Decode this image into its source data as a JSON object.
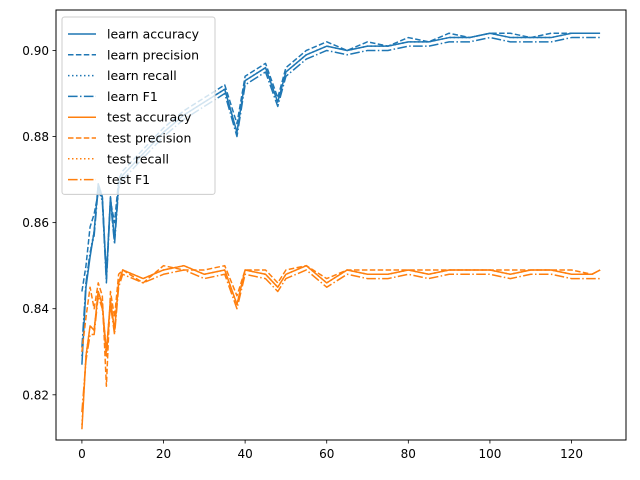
{
  "chart_data": {
    "type": "line",
    "title": "",
    "xlabel": "",
    "ylabel": "",
    "xlim": [
      -6.35,
      133.35
    ],
    "ylim": [
      0.8095,
      0.9094
    ],
    "xticks": [
      0,
      20,
      40,
      60,
      80,
      100,
      120
    ],
    "xtick_labels": [
      "0",
      "20",
      "40",
      "60",
      "80",
      "100",
      "120"
    ],
    "yticks": [
      0.82,
      0.84,
      0.86,
      0.88,
      0.9
    ],
    "ytick_labels": [
      "0.82",
      "0.84",
      "0.86",
      "0.88",
      "0.90"
    ],
    "grid": false,
    "legend_position": "top-left",
    "x_points": [
      0,
      1,
      2,
      3,
      4,
      5,
      6,
      7,
      8,
      9,
      10,
      15,
      20,
      25,
      30,
      35,
      38,
      40,
      45,
      48,
      50,
      55,
      60,
      65,
      70,
      75,
      80,
      85,
      90,
      95,
      100,
      105,
      110,
      115,
      120,
      125,
      127
    ],
    "series": [
      {
        "name": "learn accuracy",
        "color": "#1f77b4",
        "dash": "solid",
        "values": [
          0.827,
          0.845,
          0.852,
          0.858,
          0.869,
          0.866,
          0.847,
          0.866,
          0.856,
          0.869,
          0.871,
          0.876,
          0.881,
          0.885,
          0.888,
          0.891,
          0.881,
          0.893,
          0.896,
          0.888,
          0.895,
          0.899,
          0.901,
          0.9,
          0.901,
          0.901,
          0.902,
          0.902,
          0.903,
          0.903,
          0.904,
          0.903,
          0.903,
          0.903,
          0.904,
          0.904,
          0.904
        ]
      },
      {
        "name": "learn precision",
        "color": "#1f77b4",
        "dash": "dashed",
        "values": [
          0.844,
          0.85,
          0.859,
          0.862,
          0.867,
          0.866,
          0.848,
          0.865,
          0.86,
          0.87,
          0.872,
          0.877,
          0.882,
          0.886,
          0.889,
          0.892,
          0.883,
          0.894,
          0.897,
          0.889,
          0.896,
          0.9,
          0.902,
          0.9,
          0.902,
          0.901,
          0.903,
          0.902,
          0.904,
          0.903,
          0.904,
          0.904,
          0.903,
          0.904,
          0.904,
          0.904,
          0.904
        ]
      },
      {
        "name": "learn recall",
        "color": "#1f77b4",
        "dash": "dotted",
        "values": [
          0.829,
          0.846,
          0.853,
          0.858,
          0.869,
          0.866,
          0.847,
          0.866,
          0.856,
          0.869,
          0.871,
          0.876,
          0.881,
          0.885,
          0.888,
          0.891,
          0.881,
          0.893,
          0.896,
          0.888,
          0.895,
          0.899,
          0.901,
          0.9,
          0.901,
          0.901,
          0.902,
          0.902,
          0.903,
          0.903,
          0.904,
          0.903,
          0.903,
          0.903,
          0.904,
          0.904,
          0.904
        ]
      },
      {
        "name": "learn F1",
        "color": "#1f77b4",
        "dash": "dashdot",
        "values": [
          0.831,
          0.846,
          0.853,
          0.857,
          0.868,
          0.865,
          0.846,
          0.865,
          0.855,
          0.868,
          0.87,
          0.875,
          0.88,
          0.884,
          0.887,
          0.89,
          0.88,
          0.892,
          0.895,
          0.887,
          0.894,
          0.898,
          0.9,
          0.899,
          0.9,
          0.9,
          0.901,
          0.901,
          0.902,
          0.902,
          0.903,
          0.902,
          0.902,
          0.902,
          0.903,
          0.903,
          0.903
        ]
      },
      {
        "name": "test accuracy",
        "color": "#ff7f0e",
        "dash": "solid",
        "values": [
          0.812,
          0.829,
          0.836,
          0.835,
          0.844,
          0.841,
          0.83,
          0.842,
          0.835,
          0.846,
          0.849,
          0.847,
          0.849,
          0.85,
          0.848,
          0.849,
          0.841,
          0.849,
          0.848,
          0.845,
          0.848,
          0.85,
          0.846,
          0.849,
          0.848,
          0.848,
          0.849,
          0.848,
          0.849,
          0.849,
          0.849,
          0.848,
          0.849,
          0.849,
          0.848,
          0.848,
          0.849
        ]
      },
      {
        "name": "test precision",
        "color": "#ff7f0e",
        "dash": "dashed",
        "values": [
          0.83,
          0.838,
          0.845,
          0.84,
          0.846,
          0.843,
          0.822,
          0.844,
          0.838,
          0.848,
          0.849,
          0.846,
          0.85,
          0.849,
          0.849,
          0.85,
          0.843,
          0.849,
          0.849,
          0.846,
          0.849,
          0.85,
          0.847,
          0.849,
          0.849,
          0.849,
          0.849,
          0.849,
          0.849,
          0.849,
          0.849,
          0.849,
          0.849,
          0.849,
          0.849,
          0.848,
          0.849
        ]
      },
      {
        "name": "test recall",
        "color": "#ff7f0e",
        "dash": "dotted",
        "values": [
          0.813,
          0.829,
          0.836,
          0.835,
          0.844,
          0.841,
          0.83,
          0.842,
          0.835,
          0.846,
          0.849,
          0.847,
          0.849,
          0.85,
          0.848,
          0.849,
          0.841,
          0.849,
          0.848,
          0.845,
          0.848,
          0.85,
          0.846,
          0.849,
          0.848,
          0.848,
          0.849,
          0.848,
          0.849,
          0.849,
          0.849,
          0.848,
          0.849,
          0.849,
          0.848,
          0.848,
          0.849
        ]
      },
      {
        "name": "test F1",
        "color": "#ff7f0e",
        "dash": "dashdot",
        "values": [
          0.816,
          0.828,
          0.834,
          0.834,
          0.843,
          0.84,
          0.829,
          0.841,
          0.834,
          0.845,
          0.848,
          0.846,
          0.848,
          0.849,
          0.847,
          0.848,
          0.84,
          0.848,
          0.847,
          0.844,
          0.847,
          0.849,
          0.845,
          0.848,
          0.847,
          0.847,
          0.848,
          0.847,
          0.848,
          0.848,
          0.848,
          0.847,
          0.848,
          0.848,
          0.847,
          0.847,
          0.847
        ]
      }
    ]
  }
}
